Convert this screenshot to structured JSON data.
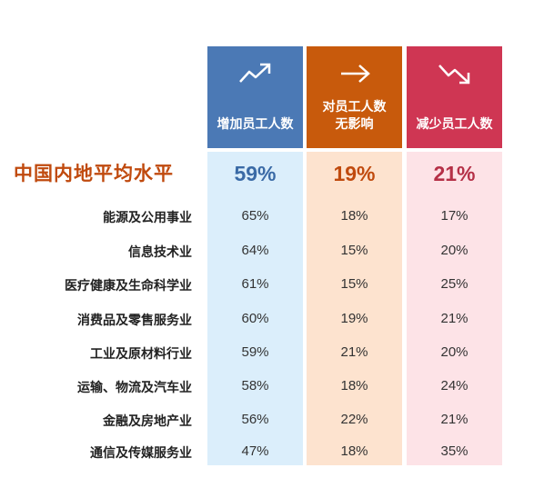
{
  "chart_data": {
    "type": "table",
    "columns": [
      {
        "label_lines": [
          "增加员工人数"
        ],
        "icon": "trend-up-icon",
        "color": "#4b79b5"
      },
      {
        "label_lines": [
          "对员工人数",
          "无影响"
        ],
        "icon": "arrow-right-icon",
        "color": "#c85a0c"
      },
      {
        "label_lines": [
          "减少员工人数"
        ],
        "icon": "trend-down-icon",
        "color": "#cf3653"
      }
    ],
    "average": {
      "label": "中国内地平均水平",
      "values": [
        "59%",
        "19%",
        "21%"
      ]
    },
    "rows": [
      {
        "industry": "能源及公用事业",
        "values": [
          "65%",
          "18%",
          "17%"
        ]
      },
      {
        "industry": "信息技术业",
        "values": [
          "64%",
          "15%",
          "20%"
        ]
      },
      {
        "industry": "医疗健康及生命科学业",
        "values": [
          "61%",
          "15%",
          "25%"
        ]
      },
      {
        "industry": "消费品及零售服务业",
        "values": [
          "60%",
          "19%",
          "21%"
        ]
      },
      {
        "industry": "工业及原材料行业",
        "values": [
          "59%",
          "21%",
          "20%"
        ]
      },
      {
        "industry": "运输、物流及汽车业",
        "values": [
          "58%",
          "18%",
          "24%"
        ]
      },
      {
        "industry": "金融及房地产业",
        "values": [
          "56%",
          "22%",
          "21%"
        ]
      },
      {
        "industry": "通信及传媒服务业",
        "values": [
          "47%",
          "18%",
          "35%"
        ]
      }
    ]
  }
}
